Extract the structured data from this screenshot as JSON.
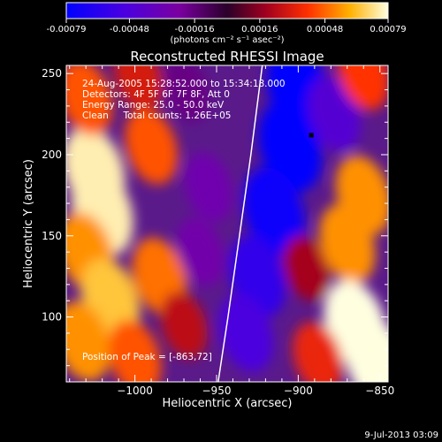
{
  "colorbar": {
    "ticks": [
      "-0.00079",
      "-0.00048",
      "-0.00016",
      "0.00016",
      "0.00048",
      "0.00079"
    ],
    "tick_values": [
      -0.00079,
      -0.00048,
      -0.00016,
      0.00016,
      0.00048,
      0.00079
    ],
    "range": [
      -0.00079,
      0.00079
    ],
    "units_label": "(photons cm⁻² s⁻¹ asec⁻²)"
  },
  "chart_data": {
    "type": "heatmap",
    "title": "Reconstructed RHESSI Image",
    "xlabel": "Heliocentric X (arcsec)",
    "ylabel": "Heliocentric Y (arcsec)",
    "xlim": [
      -1042,
      -845
    ],
    "ylim": [
      60,
      255
    ],
    "x_ticks": [
      -1000,
      -950,
      -900,
      -850
    ],
    "x_tick_labels": [
      "−1000",
      "−950",
      "−900",
      "−850"
    ],
    "y_ticks": [
      100,
      150,
      200,
      250
    ],
    "y_tick_labels": [
      "100",
      "150",
      "200",
      "250"
    ],
    "annotations": [
      "24-Aug-2005 15:28:52.000 to 15:34:18.000",
      "Detectors: 4F 5F 6F 7F 8F, Att 0",
      "Energy Range: 25.0 - 50.0 keV",
      "Clean     Total counts: 1.26E+05"
    ],
    "peak_label": "Position of Peak = [-863,72]",
    "peak": [
      -863,
      72
    ],
    "marker": [
      -892,
      212
    ],
    "limb_curve": [
      [
        -949,
        60
      ],
      [
        -943,
        100
      ],
      [
        -936,
        150
      ],
      [
        -929,
        200
      ],
      [
        -922,
        255
      ]
    ],
    "blobs": [
      {
        "x": -1025,
        "y": 190,
        "v": 0.00075
      },
      {
        "x": -1020,
        "y": 165,
        "v": 0.00075
      },
      {
        "x": -1030,
        "y": 140,
        "v": 0.00055
      },
      {
        "x": -1015,
        "y": 110,
        "v": 0.00065
      },
      {
        "x": -1032,
        "y": 85,
        "v": 0.00055
      },
      {
        "x": -1030,
        "y": 235,
        "v": 0.00045
      },
      {
        "x": -990,
        "y": 205,
        "v": 0.00045
      },
      {
        "x": -985,
        "y": 125,
        "v": 0.0005
      },
      {
        "x": -1000,
        "y": 75,
        "v": 0.00045
      },
      {
        "x": -970,
        "y": 95,
        "v": 0.00025
      },
      {
        "x": -998,
        "y": 248,
        "v": 0.0003
      },
      {
        "x": -968,
        "y": 240,
        "v": -0.00018
      },
      {
        "x": -955,
        "y": 180,
        "v": -0.0003
      },
      {
        "x": -960,
        "y": 140,
        "v": -0.00028
      },
      {
        "x": -900,
        "y": 240,
        "v": -0.00079
      },
      {
        "x": -905,
        "y": 205,
        "v": -0.00079
      },
      {
        "x": -915,
        "y": 165,
        "v": -0.00075
      },
      {
        "x": -925,
        "y": 125,
        "v": -0.0006
      },
      {
        "x": -932,
        "y": 90,
        "v": -0.0005
      },
      {
        "x": -878,
        "y": 225,
        "v": -0.00045
      },
      {
        "x": -860,
        "y": 250,
        "v": 0.0004
      },
      {
        "x": -860,
        "y": 175,
        "v": 0.00055
      },
      {
        "x": -870,
        "y": 145,
        "v": 0.00055
      },
      {
        "x": -865,
        "y": 95,
        "v": 0.00079
      },
      {
        "x": -852,
        "y": 72,
        "v": 0.00079
      },
      {
        "x": -888,
        "y": 75,
        "v": 0.00035
      },
      {
        "x": -895,
        "y": 130,
        "v": 0.0002
      }
    ]
  },
  "footer": {
    "date": "9-Jul-2013 03:09"
  }
}
